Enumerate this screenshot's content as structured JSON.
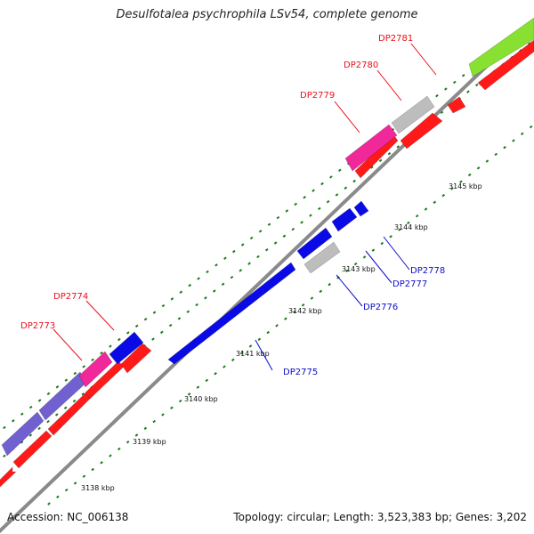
{
  "title": "Desulfotalea psychrophila LSv54, complete genome",
  "footer": {
    "accession": "Accession: NC_006138",
    "summary": "Topology: circular; Length: 3,523,383 bp; Genes: 3,202"
  },
  "colors": {
    "forward_label": "#e8101a",
    "reverse_label": "#0c0ccc",
    "backbone": "#8a8a8a",
    "tick": "#1a7a1a",
    "cds": "#ff1a1a",
    "reverse_gene": "#0a0ae6",
    "pseudo_gene": "#bdbdbd",
    "pink_gene": "#f0289a",
    "violet_gene": "#7060d0",
    "green_gene": "#88e030"
  },
  "scale_labels": [
    "3138 kbp",
    "3139 kbp",
    "3140 kbp",
    "3141 kbp",
    "3142 kbp",
    "3143 kbp",
    "3144 kbp",
    "3145 kbp"
  ],
  "forward_genes": [
    "DP2773",
    "DP2774",
    "DP2779",
    "DP2780",
    "DP2781"
  ],
  "reverse_genes": [
    "DP2775",
    "DP2776",
    "DP2777",
    "DP2778"
  ]
}
